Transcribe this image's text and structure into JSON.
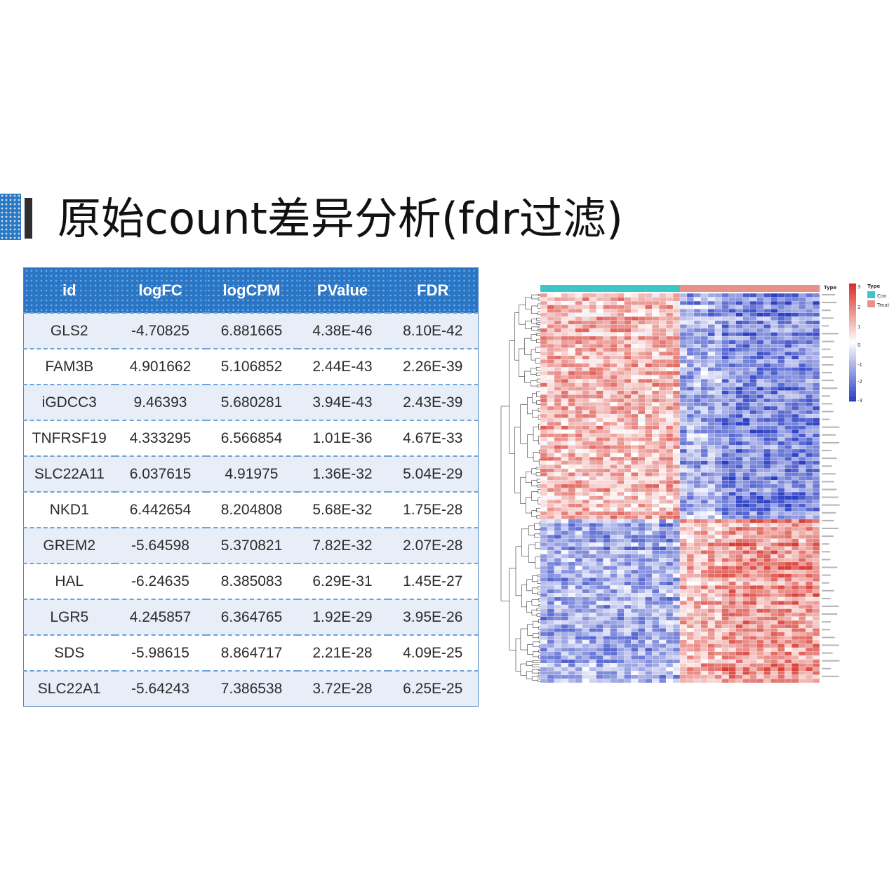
{
  "slide": {
    "title": "原始count差异分析(fdr过滤)"
  },
  "table": {
    "headers": [
      "id",
      "logFC",
      "logCPM",
      "PValue",
      "FDR"
    ],
    "rows": [
      [
        "GLS2",
        "-4.70825",
        "6.881665",
        "4.38E-46",
        "8.10E-42"
      ],
      [
        "FAM3B",
        "4.901662",
        "5.106852",
        "2.44E-43",
        "2.26E-39"
      ],
      [
        "iGDCC3",
        "9.46393",
        "5.680281",
        "3.94E-43",
        "2.43E-39"
      ],
      [
        "TNFRSF19",
        "4.333295",
        "6.566854",
        "1.01E-36",
        "4.67E-33"
      ],
      [
        "SLC22A11",
        "6.037615",
        "4.91975",
        "1.36E-32",
        "5.04E-29"
      ],
      [
        "NKD1",
        "6.442654",
        "8.204808",
        "5.68E-32",
        "1.75E-28"
      ],
      [
        "GREM2",
        "-5.64598",
        "5.370821",
        "7.82E-32",
        "2.07E-28"
      ],
      [
        "HAL",
        "-6.24635",
        "8.385083",
        "6.29E-31",
        "1.45E-27"
      ],
      [
        "LGR5",
        "4.245857",
        "6.364765",
        "1.92E-29",
        "3.95E-26"
      ],
      [
        "SDS",
        "-5.98615",
        "8.864717",
        "2.21E-28",
        "4.09E-25"
      ],
      [
        "SLC22A1",
        "-5.64243",
        "7.386538",
        "3.72E-28",
        "6.25E-25"
      ]
    ]
  },
  "heatmap": {
    "type_legend_title": "Type",
    "groups": [
      {
        "name": "Con",
        "color": "#3cc6c8"
      },
      {
        "name": "Treat",
        "color": "#e8908a"
      }
    ],
    "color_scale": {
      "ticks": [
        "3",
        "2",
        "1",
        "0",
        "-1",
        "-2",
        "-3"
      ],
      "high": "#d73027",
      "mid": "#ffffff",
      "low": "#2b3fc4"
    }
  }
}
